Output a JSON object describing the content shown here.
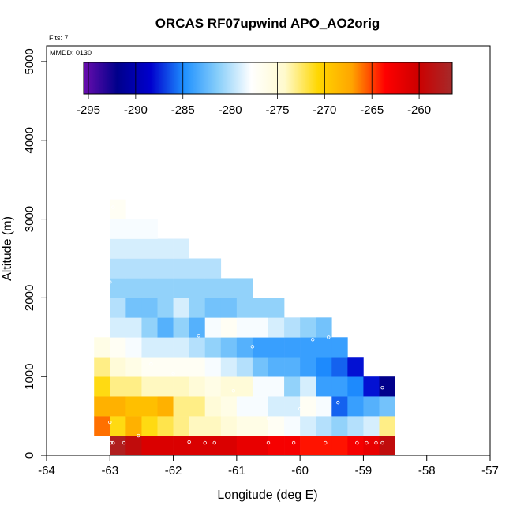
{
  "chart_data": {
    "type": "heatmap",
    "title": "ORCAS RF07upwind APO_AO2orig",
    "xlabel": "Longitude (deg E)",
    "ylabel": "Altitude (m)",
    "xlim": [
      -64,
      -57
    ],
    "ylim": [
      0,
      5200
    ],
    "x_ticks": [
      "-64",
      "-63",
      "-62",
      "-61",
      "-60",
      "-59",
      "-58",
      "-57"
    ],
    "y_ticks": [
      "0",
      "1000",
      "2000",
      "3000",
      "4000",
      "5000"
    ],
    "annotations": {
      "flights": "Flts: 7",
      "date": "MMDD: 0130"
    },
    "colorbar": {
      "range": [
        -295.5,
        -256.5
      ],
      "ticks": [
        "-295",
        "-290",
        "-285",
        "-280",
        "-275",
        "-270",
        "-265",
        "-260"
      ],
      "stops": [
        "#6a0dad",
        "#00008b",
        "#0000cd",
        "#1e90ff",
        "#87cefa",
        "#ffffff",
        "#fffacd",
        "#ffd700",
        "#ffa500",
        "#ff0000",
        "#cc0000",
        "#a52a2a"
      ]
    },
    "bin_size": {
      "lon": 0.25,
      "alt": 250
    },
    "rows": [
      {
        "alt": 0,
        "lon_start": -63.0,
        "values": [
          -257.5,
          -259,
          -261,
          -261,
          -261,
          -261,
          -261,
          -261,
          -262,
          -262,
          -263,
          -263,
          -264,
          -264,
          -264,
          -263,
          -262,
          -259
        ]
      },
      {
        "alt": 250,
        "lon_start": -63.25,
        "values": [
          -266,
          -271,
          -268,
          -271,
          -272,
          -273,
          -274,
          -274,
          -275,
          -276,
          -276,
          -277,
          -278,
          -279,
          -280,
          -281,
          -280,
          -279,
          -273
        ]
      },
      {
        "alt": 500,
        "lon_start": -63.25,
        "values": [
          -268,
          -268,
          -269,
          -269,
          -268,
          -273,
          -273,
          -275,
          -276,
          -278,
          -278,
          -279,
          -279,
          -277,
          -278,
          -286,
          -284,
          -283,
          -282
        ]
      },
      {
        "alt": 750,
        "lon_start": -63.25,
        "values": [
          -271,
          -273,
          -273,
          -274,
          -274,
          -274,
          -275,
          -276,
          -275,
          -275,
          -278,
          -278,
          -281,
          -279,
          -284,
          -284,
          -285,
          -288,
          -292
        ]
      },
      {
        "alt": 1000,
        "lon_start": -63.25,
        "values": [
          -273,
          -275,
          -276,
          -277,
          -277,
          -277,
          -277,
          -278,
          -279,
          -280,
          -282,
          -283,
          -283,
          -284,
          -285,
          -286,
          -288
        ]
      },
      {
        "alt": 1250,
        "lon_start": -63.25,
        "values": [
          -276,
          -277,
          -278,
          -279,
          -279,
          -279,
          -280,
          -281,
          -282,
          -283,
          -284,
          -284,
          -284,
          -284,
          -284,
          -284
        ]
      },
      {
        "alt": 1500,
        "lon_start": -63.0,
        "values": [
          -279,
          -279,
          -281,
          -283,
          -281,
          -283,
          -278,
          -277,
          -278,
          -278,
          -279,
          -280,
          -281,
          -282
        ]
      },
      {
        "alt": 1750,
        "lon_start": -63.0,
        "values": [
          -280,
          -282,
          -282,
          -281,
          -279,
          -281,
          -282,
          -282,
          -281,
          -281,
          -281
        ]
      },
      {
        "alt": 2000,
        "lon_start": -63.0,
        "values": [
          -281,
          -281,
          -281,
          -281,
          -281,
          -281,
          -281,
          -281,
          -281
        ]
      },
      {
        "alt": 2250,
        "lon_start": -63.0,
        "values": [
          -280,
          -280,
          -280,
          -280,
          -280,
          -280,
          -280
        ]
      },
      {
        "alt": 2500,
        "lon_start": -63.0,
        "values": [
          -279,
          -279,
          -279,
          -279,
          -279
        ]
      },
      {
        "alt": 2750,
        "lon_start": -63.0,
        "values": [
          -278,
          -278,
          -278
        ]
      },
      {
        "alt": 3000,
        "lon_start": -63.0,
        "values": [
          -277
        ]
      }
    ],
    "sample_points": [
      [
        -62.98,
        160
      ],
      [
        -62.95,
        160
      ],
      [
        -62.78,
        160
      ],
      [
        -62.55,
        250
      ],
      [
        -61.75,
        170
      ],
      [
        -61.5,
        160
      ],
      [
        -61.35,
        160
      ],
      [
        -60.5,
        160
      ],
      [
        -60.1,
        160
      ],
      [
        -59.6,
        160
      ],
      [
        -59.1,
        160
      ],
      [
        -58.95,
        160
      ],
      [
        -58.8,
        160
      ],
      [
        -58.7,
        160
      ],
      [
        -63.0,
        420
      ],
      [
        -61.05,
        820
      ],
      [
        -60.5,
        470
      ],
      [
        -60.0,
        590
      ],
      [
        -59.4,
        670
      ],
      [
        -58.7,
        860
      ],
      [
        -62.35,
        1160
      ],
      [
        -62.0,
        1040
      ],
      [
        -60.75,
        1380
      ],
      [
        -59.8,
        1470
      ],
      [
        -59.55,
        1500
      ],
      [
        -61.6,
        1520
      ],
      [
        -63.0,
        2200
      ],
      [
        -62.95,
        3150
      ]
    ]
  }
}
